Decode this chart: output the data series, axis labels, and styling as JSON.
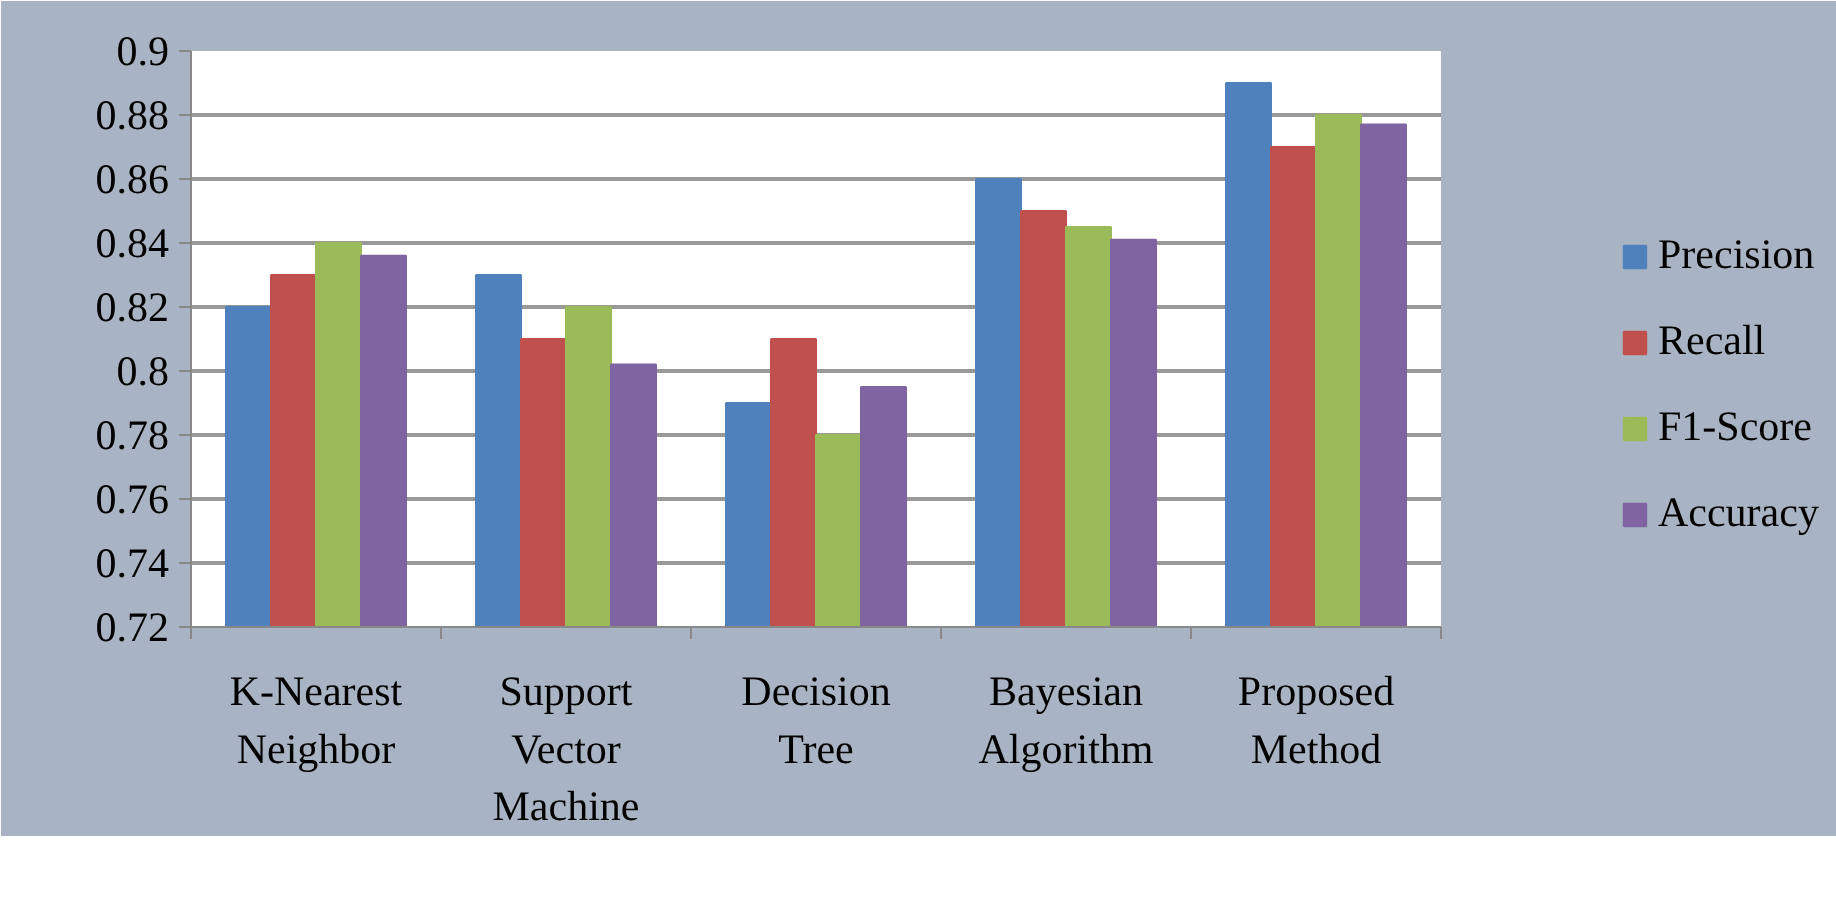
{
  "chart_data": {
    "type": "bar",
    "categories": [
      "K-Nearest Neighbor",
      "Support Vector Machine",
      "Decision Tree",
      "Bayesian Algorithm",
      "Proposed Method"
    ],
    "series": [
      {
        "name": "Precision",
        "color": "#4f81bd",
        "values": [
          0.82,
          0.83,
          0.79,
          0.86,
          0.89
        ]
      },
      {
        "name": "Recall",
        "color": "#c0504d",
        "values": [
          0.83,
          0.81,
          0.81,
          0.85,
          0.87
        ]
      },
      {
        "name": "F1-Score",
        "color": "#9bbb59",
        "values": [
          0.84,
          0.82,
          0.78,
          0.845,
          0.88
        ]
      },
      {
        "name": "Accuracy",
        "color": "#8064a2",
        "values": [
          0.836,
          0.802,
          0.795,
          0.841,
          0.877
        ]
      }
    ],
    "ylim": [
      0.72,
      0.9
    ],
    "yticks": [
      0.72,
      0.74,
      0.76,
      0.78,
      0.8,
      0.82,
      0.84,
      0.86,
      0.88,
      0.9
    ],
    "grid": "y",
    "legend": "right"
  }
}
